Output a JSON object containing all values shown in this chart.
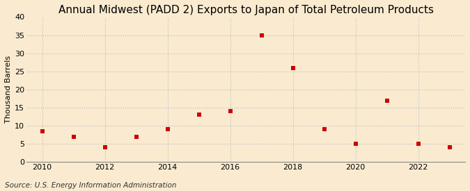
{
  "title": "Annual Midwest (PADD 2) Exports to Japan of Total Petroleum Products",
  "ylabel": "Thousand Barrels",
  "source": "Source: U.S. Energy Information Administration",
  "years": [
    2010,
    2011,
    2012,
    2013,
    2014,
    2015,
    2016,
    2017,
    2018,
    2019,
    2020,
    2021,
    2022,
    2023
  ],
  "values": [
    8.5,
    7.0,
    4.0,
    7.0,
    9.0,
    13.0,
    14.0,
    35.0,
    26.0,
    9.0,
    5.0,
    17.0,
    5.0,
    4.0
  ],
  "marker_color": "#cc0000",
  "marker_size": 5,
  "background_color": "#faebd0",
  "grid_color": "#bbbbbb",
  "ylim": [
    0,
    40
  ],
  "yticks": [
    0,
    5,
    10,
    15,
    20,
    25,
    30,
    35,
    40
  ],
  "xlim": [
    2009.5,
    2023.5
  ],
  "xticks": [
    2010,
    2012,
    2014,
    2016,
    2018,
    2020,
    2022
  ],
  "title_fontsize": 11,
  "ylabel_fontsize": 8,
  "tick_fontsize": 8,
  "source_fontsize": 7.5
}
